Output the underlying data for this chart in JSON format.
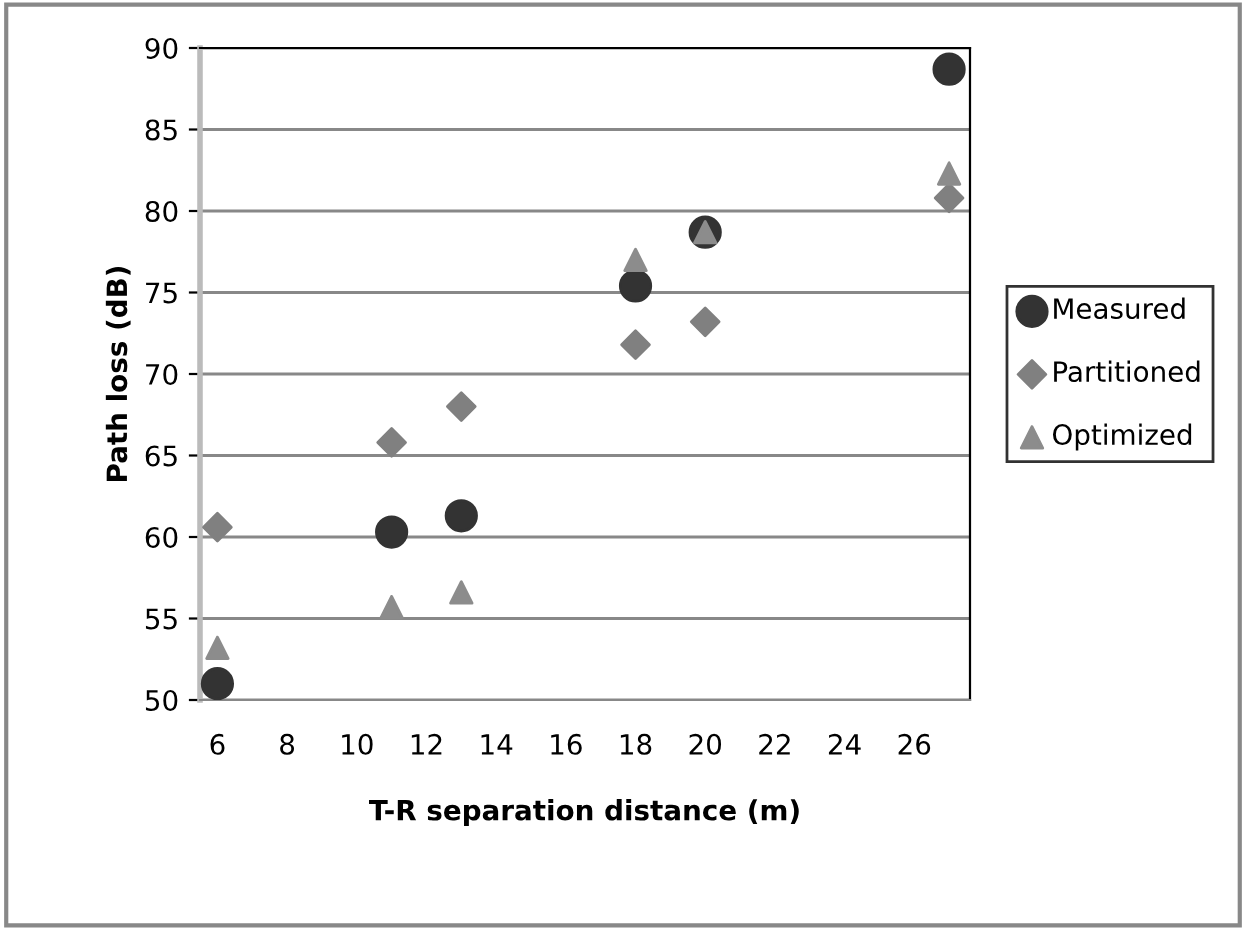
{
  "chart_data": {
    "type": "scatter",
    "xlabel": "T-R separation distance (m)",
    "ylabel": "Path loss (dB)",
    "x": [
      6,
      11,
      13,
      18,
      20,
      27
    ],
    "series": [
      {
        "name": "Measured",
        "color": "#333333",
        "marker": "circle",
        "values": [
          51.0,
          60.3,
          61.3,
          75.4,
          78.7,
          88.7
        ]
      },
      {
        "name": "Partitioned",
        "color": "#808080",
        "marker": "diamond",
        "values": [
          60.6,
          65.8,
          68.0,
          71.8,
          73.2,
          80.8
        ]
      },
      {
        "name": "Optimized",
        "color": "#8c8c8c",
        "marker": "triangle",
        "values": [
          53.2,
          55.7,
          56.6,
          77.0,
          78.7,
          82.3
        ]
      }
    ],
    "xlim": [
      5.5,
      27.6
    ],
    "xticks": [
      6,
      8,
      10,
      12,
      14,
      16,
      18,
      20,
      22,
      24,
      26
    ],
    "ylim": [
      50,
      90
    ],
    "yticks": [
      50,
      55,
      60,
      65,
      70,
      75,
      80,
      85,
      90
    ],
    "grid": "y",
    "legend": "right"
  }
}
